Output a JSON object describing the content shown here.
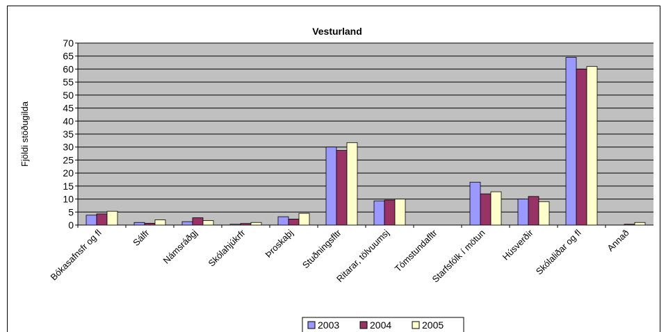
{
  "chart_data": {
    "type": "bar",
    "title": "Vesturland",
    "y_label": "Fjöldi stöðugilda",
    "categories": [
      "Bókasafnsfr og fl",
      "Sálfr",
      "Námsráðgj",
      "Skólahjúkrfr",
      "Þroskaþj",
      "Stuðningsfltr",
      "Ritarar, tölvuumsj",
      "Tómstundafltr",
      "Starfsfólk í mötun",
      "Húsverðir",
      "Skólaliðar og fl",
      "Annað"
    ],
    "series": [
      {
        "name": "2003",
        "color": "#9999ff",
        "values": [
          3.8,
          1,
          1.3,
          0.3,
          3.2,
          30,
          9.3,
          null,
          16.5,
          10,
          64.5,
          null
        ]
      },
      {
        "name": "2004",
        "color": "#993366",
        "values": [
          4.3,
          0.7,
          2.8,
          0.6,
          2.3,
          28.7,
          9.6,
          null,
          12,
          11,
          60,
          0.3
        ]
      },
      {
        "name": "2005",
        "color": "#ffffcc",
        "values": [
          5.3,
          2,
          1.7,
          1,
          4.5,
          31.7,
          10,
          null,
          12.8,
          9,
          61,
          1
        ]
      }
    ],
    "ylim": [
      0,
      70
    ],
    "yticks": [
      0,
      5,
      10,
      15,
      20,
      25,
      30,
      35,
      40,
      45,
      50,
      55,
      60,
      65,
      70
    ],
    "grid": true,
    "plot_background": "#c0c0c0",
    "legend": "bottom"
  }
}
